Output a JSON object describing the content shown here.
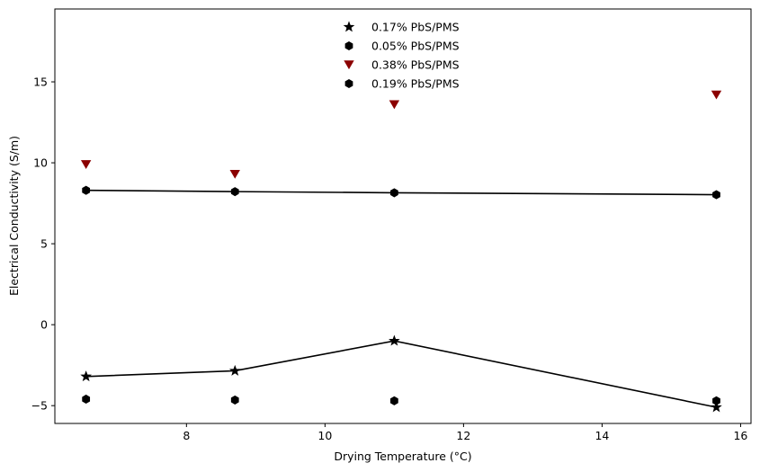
{
  "chart_data": {
    "type": "scatter",
    "title": "",
    "xlabel": "Drying Temperature (°C)",
    "ylabel": "Electrical Conductivity (S/m)",
    "xlim": [
      6.1,
      16.15
    ],
    "ylim": [
      -6.1,
      19.5
    ],
    "xticks": [
      8,
      10,
      12,
      14,
      16
    ],
    "yticks": [
      -5,
      0,
      5,
      10,
      15
    ],
    "grid": false,
    "legend_position": "top-center",
    "series": [
      {
        "name": "0.17% PbS/PMS",
        "marker": "star",
        "color": "#000000",
        "line": true,
        "x": [
          6.55,
          8.7,
          11.0,
          15.65
        ],
        "y": [
          -3.2,
          -2.85,
          -1.0,
          -5.1
        ]
      },
      {
        "name": "0.05% PbS/PMS",
        "marker": "hexagon",
        "color": "#000000",
        "line": false,
        "x": [
          6.55,
          8.7,
          11.0,
          15.65
        ],
        "y": [
          -4.6,
          -4.65,
          -4.7,
          -4.7
        ]
      },
      {
        "name": "0.38% PbS/PMS",
        "marker": "triangle-down",
        "color": "#8b0000",
        "line": false,
        "x": [
          6.55,
          8.7,
          11.0,
          15.65
        ],
        "y": [
          9.9,
          9.3,
          13.6,
          14.2
        ]
      },
      {
        "name": "0.19% PbS/PMS",
        "marker": "hexagon",
        "color": "#000000",
        "line": true,
        "x": [
          6.55,
          8.7,
          11.0,
          15.65
        ],
        "y": [
          8.3,
          8.22,
          8.15,
          8.03
        ]
      }
    ]
  }
}
